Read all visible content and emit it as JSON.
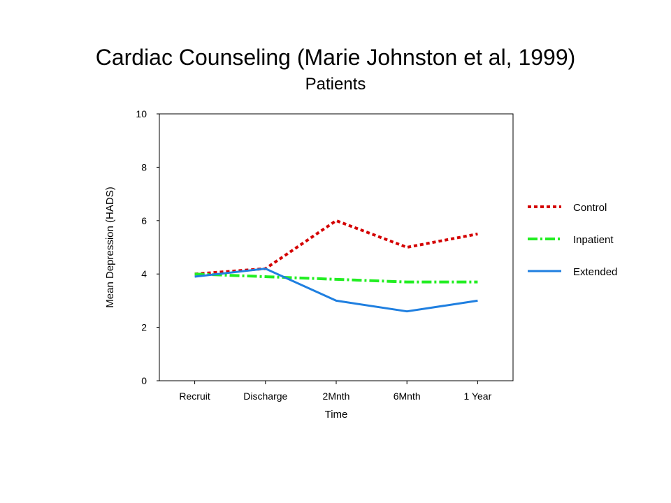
{
  "chart_data": {
    "type": "line",
    "title": "Cardiac Counseling (Marie Johnston et al, 1999)",
    "subtitle": "Patients",
    "xlabel": "Time",
    "ylabel": "Mean Depression (HADS)",
    "categories": [
      "Recruit",
      "Discharge",
      "2Mnth",
      "6Mnth",
      "1 Year"
    ],
    "ylim": [
      0,
      10
    ],
    "yticks": [
      0,
      2,
      4,
      6,
      8,
      10
    ],
    "grid": false,
    "legend_position": "right",
    "series": [
      {
        "name": "Control",
        "values": [
          4.0,
          4.2,
          6.0,
          5.0,
          5.5
        ],
        "color": "#d40000",
        "style": "dotted"
      },
      {
        "name": "Inpatient",
        "values": [
          4.0,
          3.9,
          3.8,
          3.7,
          3.7
        ],
        "color": "#22ee22",
        "style": "dash-dot"
      },
      {
        "name": "Extended",
        "values": [
          3.9,
          4.2,
          3.0,
          2.6,
          3.0
        ],
        "color": "#1f7fe0",
        "style": "solid"
      }
    ]
  }
}
